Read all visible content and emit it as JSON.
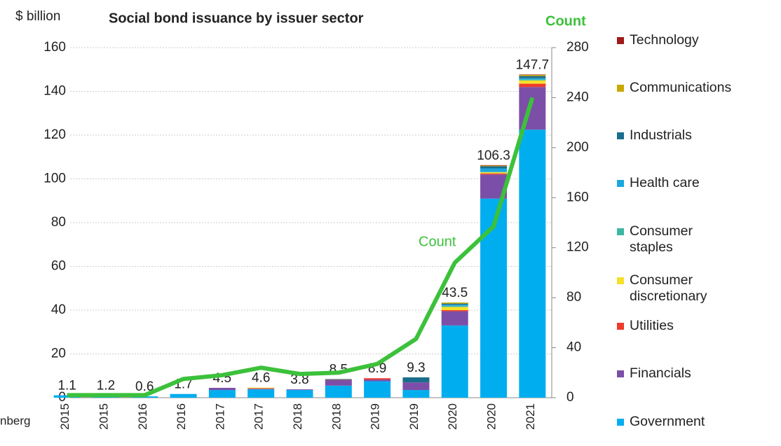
{
  "chart_data": {
    "type": "stacked-bar-line",
    "title": "Social bond issuance by issuer sector",
    "y_label": "$ billion",
    "y2_label": "Count",
    "line_label": "Count",
    "source": "nberg",
    "categories": [
      "2015",
      "2015",
      "2016",
      "2016",
      "2017",
      "2017",
      "2018",
      "2018",
      "2019",
      "2019",
      "2020",
      "2020",
      "2021"
    ],
    "ylim": [
      0,
      160
    ],
    "yticks": [
      0,
      20,
      40,
      60,
      80,
      100,
      120,
      140,
      160
    ],
    "y2lim": [
      0,
      280
    ],
    "y2ticks": [
      0,
      40,
      80,
      120,
      160,
      200,
      240,
      280
    ],
    "grid": true,
    "totals": [
      1.1,
      1.2,
      0.6,
      1.7,
      4.5,
      4.6,
      3.8,
      8.5,
      8.9,
      9.3,
      43.5,
      106.3,
      147.7
    ],
    "series": [
      {
        "name": "Government",
        "color": "#00aeef",
        "values": [
          1.1,
          1.2,
          0.6,
          1.7,
          3.5,
          3.8,
          3.5,
          5.5,
          7.5,
          3.5,
          33,
          91,
          122.5
        ]
      },
      {
        "name": "Financials",
        "color": "#7b4fa8",
        "values": [
          0,
          0,
          0,
          0,
          1.0,
          0.3,
          0.3,
          2.5,
          0.8,
          3.5,
          6.5,
          11,
          19.5
        ]
      },
      {
        "name": "Utilities",
        "color": "#ef3b2c",
        "values": [
          0,
          0,
          0,
          0,
          0,
          0.2,
          0,
          0.2,
          0.6,
          0,
          0.5,
          0.5,
          1.5
        ]
      },
      {
        "name": "Consumer discretionary",
        "color": "#f5e02a",
        "values": [
          0,
          0,
          0,
          0,
          0,
          0.3,
          0,
          0,
          0,
          0,
          1.5,
          0.5,
          1.5
        ]
      },
      {
        "name": "Consumer staples",
        "color": "#3cb7a4",
        "values": [
          0,
          0,
          0,
          0,
          0,
          0,
          0,
          0,
          0,
          0,
          0.5,
          0.3,
          0.5
        ]
      },
      {
        "name": "Health care",
        "color": "#1aa7e0",
        "values": [
          0,
          0,
          0,
          0,
          0,
          0,
          0,
          0,
          0,
          0,
          0.5,
          1.5,
          0.5
        ]
      },
      {
        "name": "Industrials",
        "color": "#1a6e8c",
        "values": [
          0,
          0,
          0,
          0,
          0,
          0,
          0,
          0.3,
          0,
          2.3,
          0.5,
          1.0,
          1.0
        ]
      },
      {
        "name": "Communications",
        "color": "#c8a800",
        "values": [
          0,
          0,
          0,
          0,
          0,
          0,
          0,
          0,
          0,
          0,
          0.5,
          0.3,
          0.5
        ]
      },
      {
        "name": "Technology",
        "color": "#a01a1a",
        "values": [
          0,
          0,
          0,
          0,
          0,
          0,
          0,
          0,
          0,
          0,
          0,
          0.2,
          0.2
        ]
      },
      {
        "name": "Count",
        "type": "line",
        "axis": "y2",
        "color": "#3cc13b",
        "values": [
          2,
          2,
          2,
          15,
          18,
          24,
          19,
          20,
          27,
          47,
          108,
          137,
          240
        ]
      }
    ]
  }
}
